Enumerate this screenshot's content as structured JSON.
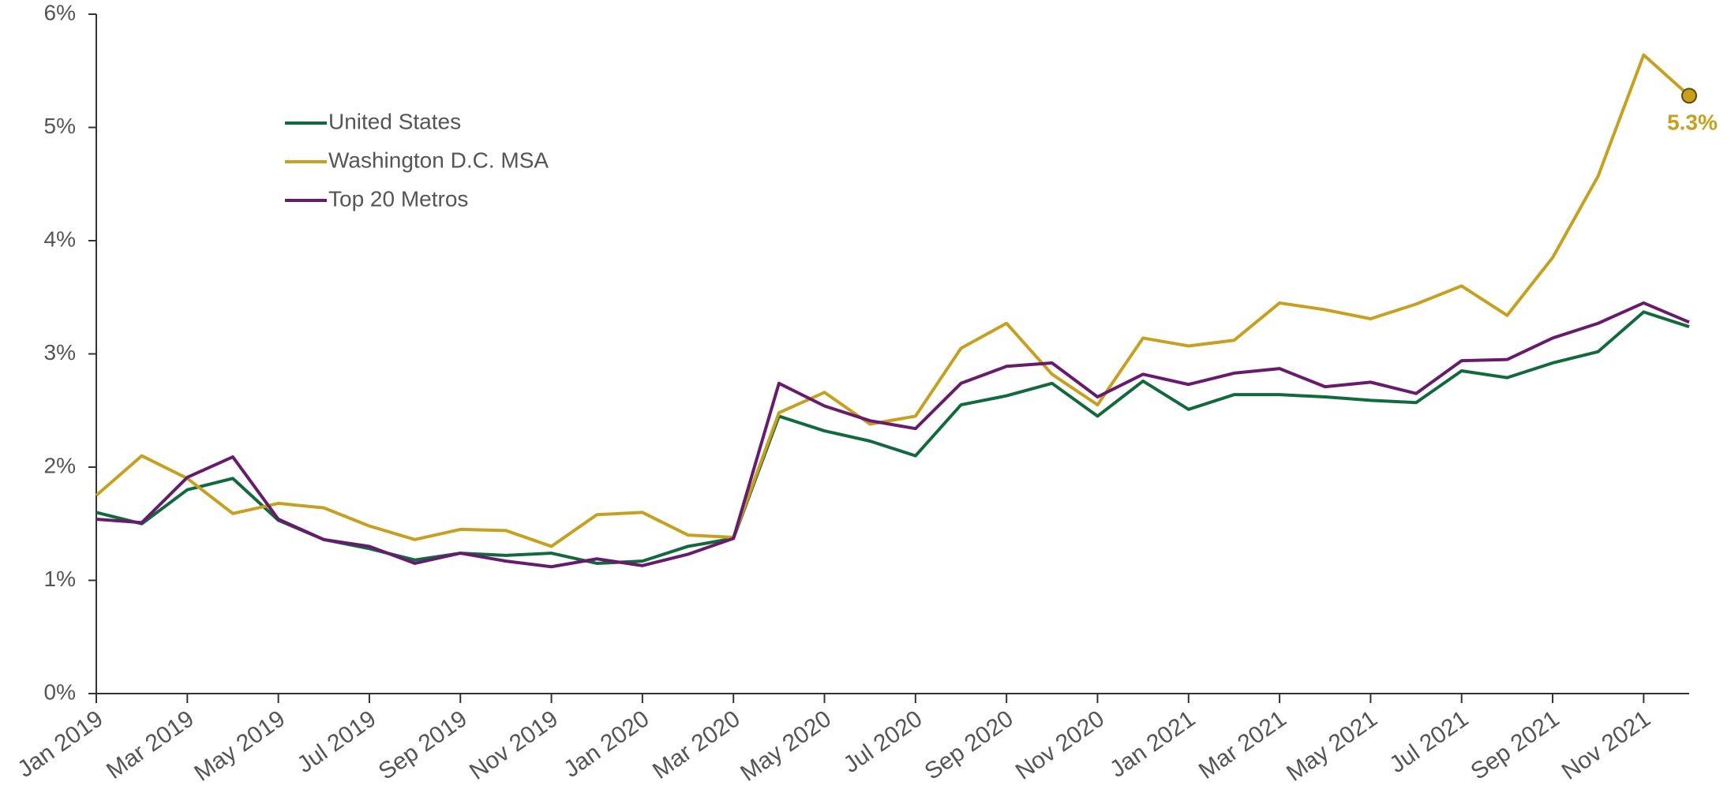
{
  "chart_data": {
    "type": "line",
    "categories": [
      "Jan 2019",
      null,
      "Mar 2019",
      null,
      "May 2019",
      null,
      "Jul 2019",
      null,
      "Sep 2019",
      null,
      "Nov 2019",
      null,
      "Jan 2020",
      null,
      "Mar 2020",
      null,
      "May 2020",
      null,
      "Jul 2020",
      null,
      "Sep 2020",
      null,
      "Nov 2020",
      null,
      "Jan 2021",
      null,
      "Mar 2021",
      null,
      "May 2021",
      null,
      "Jul 2021",
      null,
      "Sep 2021",
      null,
      "Nov 2021",
      null
    ],
    "series": [
      {
        "name": "United States",
        "color": "#0e6b3c",
        "values": [
          1.6,
          1.5,
          1.8,
          1.9,
          1.53,
          1.36,
          1.28,
          1.18,
          1.24,
          1.22,
          1.24,
          1.15,
          1.17,
          1.3,
          1.37,
          2.45,
          2.32,
          2.23,
          2.1,
          2.55,
          2.63,
          2.74,
          2.45,
          2.76,
          2.51,
          2.64,
          2.64,
          2.62,
          2.59,
          2.57,
          2.85,
          2.79,
          2.92,
          3.02,
          3.37,
          3.24
        ]
      },
      {
        "name": "Washington D.C. MSA",
        "color": "#c9a01a",
        "values": [
          1.75,
          2.1,
          1.9,
          1.59,
          1.68,
          1.64,
          1.48,
          1.36,
          1.45,
          1.44,
          1.3,
          1.58,
          1.6,
          1.4,
          1.38,
          2.48,
          2.66,
          2.38,
          2.45,
          3.05,
          3.27,
          2.82,
          2.55,
          3.14,
          3.07,
          3.12,
          3.45,
          3.39,
          3.31,
          3.44,
          3.6,
          3.34,
          3.85,
          4.57,
          5.64,
          5.28
        ],
        "value_labels": [
          null,
          null,
          null,
          null,
          null,
          null,
          null,
          null,
          null,
          null,
          null,
          null,
          null,
          null,
          null,
          null,
          null,
          null,
          null,
          null,
          null,
          null,
          null,
          null,
          null,
          null,
          null,
          null,
          null,
          null,
          null,
          null,
          null,
          null,
          null,
          "5.3%"
        ]
      },
      {
        "name": "Top 20 Metros",
        "color": "#6a1a6e",
        "values": [
          1.54,
          1.51,
          1.91,
          2.09,
          1.54,
          1.36,
          1.3,
          1.15,
          1.24,
          1.17,
          1.12,
          1.19,
          1.13,
          1.23,
          1.37,
          2.74,
          2.54,
          2.41,
          2.34,
          2.74,
          2.89,
          2.92,
          2.62,
          2.82,
          2.73,
          2.83,
          2.87,
          2.71,
          2.75,
          2.65,
          2.94,
          2.95,
          3.14,
          3.27,
          3.45,
          3.28
        ]
      }
    ],
    "ylim": [
      0,
      6
    ],
    "yticks": [
      {
        "value": 0,
        "label": "0%"
      },
      {
        "value": 1,
        "label": "1%"
      },
      {
        "value": 2,
        "label": "2%"
      },
      {
        "value": 3,
        "label": "3%"
      },
      {
        "value": 4,
        "label": "4%"
      },
      {
        "value": 5,
        "label": "5%"
      },
      {
        "value": 6,
        "label": "6%"
      }
    ],
    "grid": false,
    "legend": "upper left"
  }
}
